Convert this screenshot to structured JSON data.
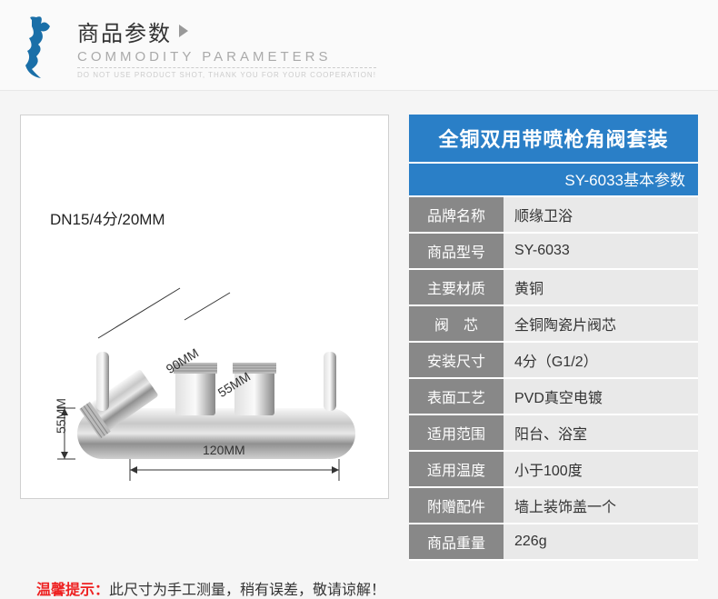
{
  "header": {
    "title": "商品参数",
    "subtitle": "COMMODITY PARAMETERS",
    "note": "DO NOT USE PRODUCT SHOT, THANK YOU FOR YOUR COOPERATION!",
    "logo_color": "#1a6fa8"
  },
  "diagram": {
    "top_label": "DN15/4分/20MM",
    "dims": {
      "d90": "90MM",
      "d55a": "55MM",
      "d120": "120MM",
      "d55b": "55MM"
    }
  },
  "spec": {
    "title": "全铜双用带喷枪角阀套装",
    "subtitle": "SY-6033基本参数",
    "title_bg": "#2a7fc7",
    "label_bg": "#888888",
    "value_bg": "#e9e9e9",
    "rows": [
      {
        "label": "品牌名称",
        "value": "顺缘卫浴"
      },
      {
        "label": "商品型号",
        "value": "SY-6033"
      },
      {
        "label": "主要材质",
        "value": "黄铜"
      },
      {
        "label": "阀　芯",
        "value": "全铜陶瓷片阀芯"
      },
      {
        "label": "安装尺寸",
        "value": "4分（G1/2）"
      },
      {
        "label": "表面工艺",
        "value": "PVD真空电镀"
      },
      {
        "label": "适用范围",
        "value": "阳台、浴室"
      },
      {
        "label": "适用温度",
        "value": "小于100度"
      },
      {
        "label": "附赠配件",
        "value": "墙上装饰盖一个"
      },
      {
        "label": "商品重量",
        "value": "226g"
      }
    ]
  },
  "footer": {
    "warn": "温馨提示：",
    "msg": "此尺寸为手工测量，稍有误差，敬请谅解！"
  }
}
